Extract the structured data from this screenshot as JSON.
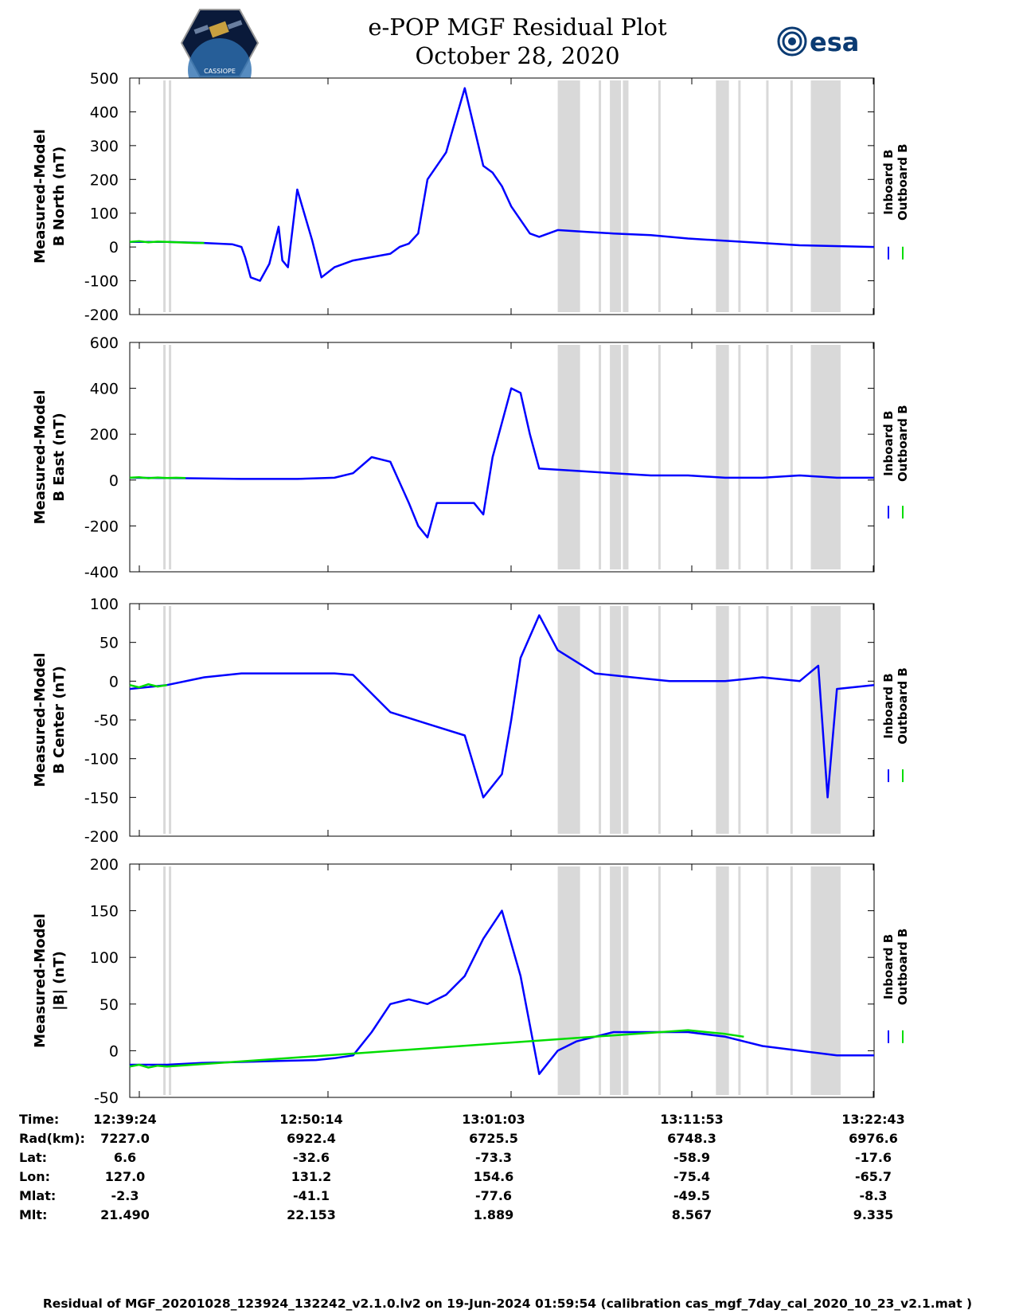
{
  "header": {
    "title_line1": "e-POP MGF Residual Plot",
    "title_line2": "October 28, 2020",
    "mission_logo_text": "CASSIOPE",
    "agency_logo_text": "esa"
  },
  "legend": {
    "inboard": "Inboard B",
    "outboard": "Outboard B"
  },
  "colors": {
    "inboard": "#0000ff",
    "outboard": "#00dd00",
    "shade": "#d9d9d9"
  },
  "chart_data": [
    {
      "type": "line",
      "ylabel_line1": "Measured-Model",
      "ylabel_line2": "B North (nT)",
      "ylim": [
        -200,
        500
      ],
      "yticks": [
        500,
        400,
        300,
        200,
        100,
        0,
        -100,
        -200
      ],
      "series": [
        {
          "name": "Inboard B",
          "x": [
            0,
            0.2,
            0.4,
            0.55,
            0.6,
            0.62,
            0.63,
            0.65,
            0.7,
            0.75,
            0.8,
            0.82,
            0.85,
            0.9,
            0.98,
            1.03,
            1.1,
            1.2,
            1.3,
            1.4,
            1.45,
            1.5,
            1.55,
            1.6,
            1.7,
            1.8,
            1.9,
            1.95,
            2.0,
            2.05,
            2.1,
            2.15,
            2.2,
            2.3,
            2.45,
            2.6,
            2.8,
            3.0,
            3.3,
            3.6,
            4.0
          ],
          "y": [
            15,
            15,
            12,
            8,
            0,
            -30,
            -50,
            -90,
            -100,
            -50,
            60,
            -40,
            -60,
            170,
            20,
            -90,
            -60,
            -40,
            -30,
            -20,
            0,
            10,
            40,
            200,
            280,
            470,
            240,
            220,
            180,
            120,
            80,
            40,
            30,
            50,
            45,
            40,
            35,
            25,
            15,
            5,
            0
          ]
        },
        {
          "name": "Outboard B",
          "x": [
            0,
            0.05,
            0.1,
            0.15,
            0.2,
            0.25,
            0.3,
            0.35,
            0.4
          ],
          "y": [
            15,
            17,
            14,
            16,
            15,
            14,
            13,
            12,
            12
          ]
        }
      ]
    },
    {
      "type": "line",
      "ylabel_line1": "Measured-Model",
      "ylabel_line2": "B East (nT)",
      "ylim": [
        -400,
        600
      ],
      "yticks": [
        600,
        400,
        200,
        0,
        -200,
        -400
      ],
      "series": [
        {
          "name": "Inboard B",
          "x": [
            0,
            0.3,
            0.6,
            0.9,
            1.1,
            1.2,
            1.3,
            1.4,
            1.5,
            1.55,
            1.6,
            1.65,
            1.7,
            1.75,
            1.8,
            1.85,
            1.9,
            1.95,
            2.0,
            2.05,
            2.1,
            2.15,
            2.2,
            2.4,
            2.6,
            2.8,
            3.0,
            3.2,
            3.4,
            3.6,
            3.8,
            4.0
          ],
          "y": [
            10,
            8,
            5,
            5,
            10,
            30,
            100,
            80,
            -100,
            -200,
            -250,
            -100,
            -100,
            -100,
            -100,
            -100,
            -150,
            100,
            250,
            400,
            380,
            200,
            50,
            40,
            30,
            20,
            20,
            10,
            10,
            20,
            10,
            10
          ]
        },
        {
          "name": "Outboard B",
          "x": [
            0,
            0.05,
            0.1,
            0.15,
            0.2,
            0.25,
            0.3
          ],
          "y": [
            10,
            12,
            8,
            11,
            9,
            10,
            9
          ]
        }
      ]
    },
    {
      "type": "line",
      "ylabel_line1": "Measured-Model",
      "ylabel_line2": "B Center (nT)",
      "ylim": [
        -200,
        100
      ],
      "yticks": [
        100,
        50,
        0,
        -50,
        -100,
        -150,
        -200
      ],
      "series": [
        {
          "name": "Inboard B",
          "x": [
            0,
            0.2,
            0.4,
            0.6,
            0.8,
            1.0,
            1.1,
            1.2,
            1.4,
            1.6,
            1.8,
            1.9,
            2.0,
            2.05,
            2.1,
            2.2,
            2.3,
            2.5,
            2.7,
            2.9,
            3.0,
            3.2,
            3.4,
            3.6,
            3.7,
            3.75,
            3.8,
            4.0
          ],
          "y": [
            -10,
            -5,
            5,
            10,
            10,
            10,
            10,
            8,
            -40,
            -55,
            -70,
            -150,
            -120,
            -50,
            30,
            85,
            40,
            10,
            5,
            0,
            0,
            0,
            5,
            0,
            20,
            -150,
            -10,
            -5
          ]
        },
        {
          "name": "Outboard B",
          "x": [
            0,
            0.05,
            0.1,
            0.15,
            0.2
          ],
          "y": [
            -5,
            -8,
            -4,
            -7,
            -5
          ]
        }
      ]
    },
    {
      "type": "line",
      "ylabel_line1": "Measured-Model",
      "ylabel_line2": "|B| (nT)",
      "ylim": [
        -50,
        200
      ],
      "yticks": [
        200,
        150,
        100,
        50,
        0,
        -50
      ],
      "series": [
        {
          "name": "Inboard B",
          "x": [
            0,
            0.2,
            0.4,
            0.6,
            0.8,
            1.0,
            1.1,
            1.2,
            1.3,
            1.4,
            1.5,
            1.6,
            1.7,
            1.8,
            1.9,
            2.0,
            2.1,
            2.2,
            2.3,
            2.4,
            2.6,
            2.8,
            3.0,
            3.2,
            3.4,
            3.6,
            3.8,
            4.0
          ],
          "y": [
            -15,
            -15,
            -13,
            -12,
            -11,
            -10,
            -8,
            -5,
            20,
            50,
            55,
            50,
            60,
            80,
            120,
            150,
            80,
            -25,
            0,
            10,
            20,
            20,
            20,
            15,
            5,
            0,
            -5,
            -5
          ]
        },
        {
          "name": "Outboard B",
          "x": [
            0,
            0.05,
            0.1,
            0.15,
            0.2,
            3.0,
            3.1,
            3.2,
            3.3
          ],
          "y": [
            -17,
            -15,
            -18,
            -16,
            -17,
            22,
            20,
            18,
            15
          ]
        }
      ]
    }
  ],
  "x_axis": {
    "ticks": [
      "12:39:24",
      "12:50:14",
      "13:01:03",
      "13:11:53",
      "13:22:43"
    ],
    "xlim": [
      0,
      4
    ],
    "shaded_regions": [
      [
        0.18,
        0.19
      ],
      [
        0.21,
        0.22
      ],
      [
        2.3,
        2.42
      ],
      [
        2.52,
        2.53
      ],
      [
        2.58,
        2.64
      ],
      [
        2.65,
        2.68
      ],
      [
        2.84,
        2.85
      ],
      [
        3.15,
        3.22
      ],
      [
        3.27,
        3.28
      ],
      [
        3.42,
        3.43
      ],
      [
        3.55,
        3.56
      ],
      [
        3.66,
        3.82
      ]
    ]
  },
  "orbit_info": {
    "labels": [
      "Time:",
      "Rad(km):",
      "Lat:",
      "Lon:",
      "Mlat:",
      "Mlt:"
    ],
    "columns": [
      {
        "time": "12:39:24",
        "rad": "7227.0",
        "lat": "6.6",
        "lon": "127.0",
        "mlat": "-2.3",
        "mlt": "21.490"
      },
      {
        "time": "12:50:14",
        "rad": "6922.4",
        "lat": "-32.6",
        "lon": "131.2",
        "mlat": "-41.1",
        "mlt": "22.153"
      },
      {
        "time": "13:01:03",
        "rad": "6725.5",
        "lat": "-73.3",
        "lon": "154.6",
        "mlat": "-77.6",
        "mlt": "1.889"
      },
      {
        "time": "13:11:53",
        "rad": "6748.3",
        "lat": "-58.9",
        "lon": "-75.4",
        "mlat": "-49.5",
        "mlt": "8.567"
      },
      {
        "time": "13:22:43",
        "rad": "6976.6",
        "lat": "-17.6",
        "lon": "-65.7",
        "mlat": "-8.3",
        "mlt": "9.335"
      }
    ]
  },
  "footer": "Residual of MGF_20201028_123924_132242_v2.1.0.lv2 on 19-Jun-2024 01:59:54 (calibration cas_mgf_7day_cal_2020_10_23_v2.1.mat )"
}
